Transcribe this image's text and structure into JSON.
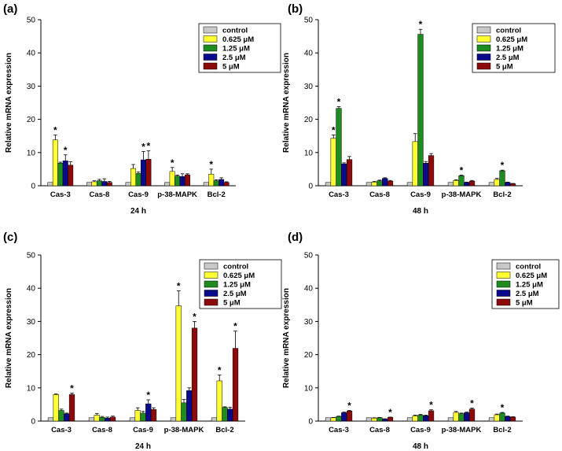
{
  "chart_data": [
    {
      "type": "bar",
      "panel": "(a)",
      "xlabel": "24 h",
      "ylabel": "Relative mRNA expression",
      "ylim": [
        0,
        50
      ],
      "yticks": [
        0,
        10,
        20,
        30,
        40,
        50
      ],
      "categories": [
        "Cas-3",
        "Cas-8",
        "Cas-9",
        "p-38-MAPK",
        "Bcl-2"
      ],
      "series": [
        {
          "name": "control",
          "values": [
            1,
            1,
            1,
            1,
            1
          ],
          "errors": [
            0,
            0,
            0,
            0,
            0
          ],
          "stars": [
            false,
            false,
            false,
            false,
            false
          ]
        },
        {
          "name": "0.625 μM",
          "values": [
            13.8,
            1.2,
            5.2,
            4.3,
            3.5
          ],
          "errors": [
            1.5,
            0.3,
            1.2,
            1.2,
            1.5
          ],
          "stars": [
            true,
            false,
            false,
            true,
            true
          ]
        },
        {
          "name": "1.25 μM",
          "values": [
            6.8,
            1.5,
            3.7,
            2.9,
            1.5
          ],
          "errors": [
            0.3,
            0.4,
            0.5,
            0.3,
            0.3
          ],
          "stars": [
            false,
            false,
            false,
            false,
            false
          ]
        },
        {
          "name": "2.5 μM",
          "values": [
            7.5,
            1.3,
            7.8,
            2.8,
            1.9
          ],
          "errors": [
            1.8,
            0.8,
            2.5,
            0.8,
            0.5
          ],
          "stars": [
            true,
            false,
            true,
            false,
            false
          ]
        },
        {
          "name": "5 μM",
          "values": [
            6.2,
            1.0,
            8.0,
            3.3,
            1.0
          ],
          "errors": [
            1.0,
            0.3,
            2.5,
            0.3,
            0.2
          ],
          "stars": [
            false,
            false,
            true,
            false,
            false
          ]
        }
      ],
      "legend_position": "top-right"
    },
    {
      "type": "bar",
      "panel": "(b)",
      "xlabel": "48 h",
      "ylabel": "Relative mRNA expression",
      "ylim": [
        0,
        50
      ],
      "yticks": [
        0,
        10,
        20,
        30,
        40,
        50
      ],
      "categories": [
        "Cas-3",
        "Cas-8",
        "Cas-9",
        "p-38-MAPK",
        "Bcl-2"
      ],
      "series": [
        {
          "name": "control",
          "values": [
            1,
            1,
            1,
            1,
            1
          ],
          "errors": [
            0,
            0,
            0,
            0,
            0
          ],
          "stars": [
            false,
            false,
            false,
            false,
            false
          ]
        },
        {
          "name": "0.625 μM",
          "values": [
            14.3,
            1.1,
            13.3,
            1.6,
            1.9
          ],
          "errors": [
            1.0,
            0.2,
            2.4,
            0.2,
            0.3
          ],
          "stars": [
            true,
            false,
            false,
            false,
            false
          ]
        },
        {
          "name": "1.25 μM",
          "values": [
            23.3,
            1.5,
            45.6,
            3.0,
            4.5
          ],
          "errors": [
            0.5,
            0.2,
            1.5,
            0.2,
            0.2
          ],
          "stars": [
            true,
            false,
            true,
            true,
            true
          ]
        },
        {
          "name": "2.5 μM",
          "values": [
            6.6,
            2.2,
            6.8,
            1.0,
            1.0
          ],
          "errors": [
            0.3,
            0.2,
            0.5,
            0.1,
            0.1
          ],
          "stars": [
            false,
            false,
            false,
            false,
            false
          ]
        },
        {
          "name": "5 μM",
          "values": [
            7.9,
            1.4,
            9.1,
            1.4,
            0.6
          ],
          "errors": [
            0.9,
            0.2,
            0.6,
            0.2,
            0.1
          ],
          "stars": [
            false,
            false,
            false,
            false,
            false
          ]
        }
      ],
      "legend_position": "top-right"
    },
    {
      "type": "bar",
      "panel": "(c)",
      "xlabel": "24 h",
      "ylabel": "Relative mRNA expression",
      "ylim": [
        0,
        50
      ],
      "yticks": [
        0,
        10,
        20,
        30,
        40,
        50
      ],
      "categories": [
        "Cas-3",
        "Cas-8",
        "Cas-9",
        "p-38-MAPK",
        "Bcl-2"
      ],
      "series": [
        {
          "name": "control",
          "values": [
            1,
            1,
            1,
            1,
            1
          ],
          "errors": [
            0,
            0,
            0,
            0,
            0
          ],
          "stars": [
            false,
            false,
            false,
            false,
            false
          ]
        },
        {
          "name": "0.625 μM",
          "values": [
            8.0,
            1.8,
            3.2,
            34.7,
            12.1
          ],
          "errors": [
            0.2,
            0.5,
            0.8,
            4.5,
            1.8
          ],
          "stars": [
            false,
            false,
            false,
            true,
            true
          ]
        },
        {
          "name": "1.25 μM",
          "values": [
            3.2,
            1.1,
            2.4,
            5.5,
            4.1
          ],
          "errors": [
            0.4,
            0.3,
            0.5,
            1.0,
            0.2
          ],
          "stars": [
            false,
            false,
            false,
            false,
            false
          ]
        },
        {
          "name": "2.5 μM",
          "values": [
            2.2,
            0.9,
            5.2,
            9.2,
            3.6
          ],
          "errors": [
            0.2,
            0.3,
            1.2,
            0.8,
            0.6
          ],
          "stars": [
            false,
            false,
            true,
            false,
            false
          ]
        },
        {
          "name": "5 μM",
          "values": [
            8.0,
            1.2,
            3.5,
            28.0,
            21.9
          ],
          "errors": [
            0.4,
            0.3,
            0.5,
            2.0,
            5.2
          ],
          "stars": [
            true,
            false,
            false,
            true,
            true
          ]
        }
      ],
      "legend_position": "top-right"
    },
    {
      "type": "bar",
      "panel": "(d)",
      "xlabel": "48 h",
      "ylabel": "Relative mRNA expression",
      "ylim": [
        0,
        50
      ],
      "yticks": [
        0,
        10,
        20,
        30,
        40,
        50
      ],
      "categories": [
        "Cas-3",
        "Cas-8",
        "Cas-9",
        "p-38-MAPK",
        "Bcl-2"
      ],
      "series": [
        {
          "name": "control",
          "values": [
            1,
            1,
            1,
            1,
            1
          ],
          "errors": [
            0,
            0,
            0,
            0,
            0
          ],
          "stars": [
            false,
            false,
            false,
            false,
            false
          ]
        },
        {
          "name": "0.625 μM",
          "values": [
            1.0,
            0.9,
            1.6,
            2.6,
            1.9
          ],
          "errors": [
            0.1,
            0.1,
            0.2,
            0.3,
            0.2
          ],
          "stars": [
            false,
            false,
            false,
            false,
            false
          ]
        },
        {
          "name": "1.25 μM",
          "values": [
            1.4,
            1.0,
            1.8,
            2.2,
            2.4
          ],
          "errors": [
            0.1,
            0.1,
            0.2,
            0.2,
            0.2
          ],
          "stars": [
            false,
            false,
            false,
            false,
            true
          ]
        },
        {
          "name": "2.5 μM",
          "values": [
            2.5,
            0.6,
            1.6,
            2.5,
            1.4
          ],
          "errors": [
            0.2,
            0.1,
            0.2,
            0.2,
            0.1
          ],
          "stars": [
            false,
            false,
            false,
            false,
            false
          ]
        },
        {
          "name": "5 μM",
          "values": [
            3.0,
            1.1,
            3.1,
            3.6,
            1.2
          ],
          "errors": [
            0.2,
            0.1,
            0.3,
            0.3,
            0.1
          ],
          "stars": [
            true,
            true,
            true,
            true,
            false
          ]
        }
      ],
      "legend_position": "top-right"
    }
  ],
  "colors": {
    "control": "#c8c8c8",
    "0.625 μM": "#ffff33",
    "1.25 μM": "#1e8c1e",
    "2.5 μM": "#0a0a8c",
    "5 μM": "#8c0a0a"
  },
  "significance_marker": "*"
}
